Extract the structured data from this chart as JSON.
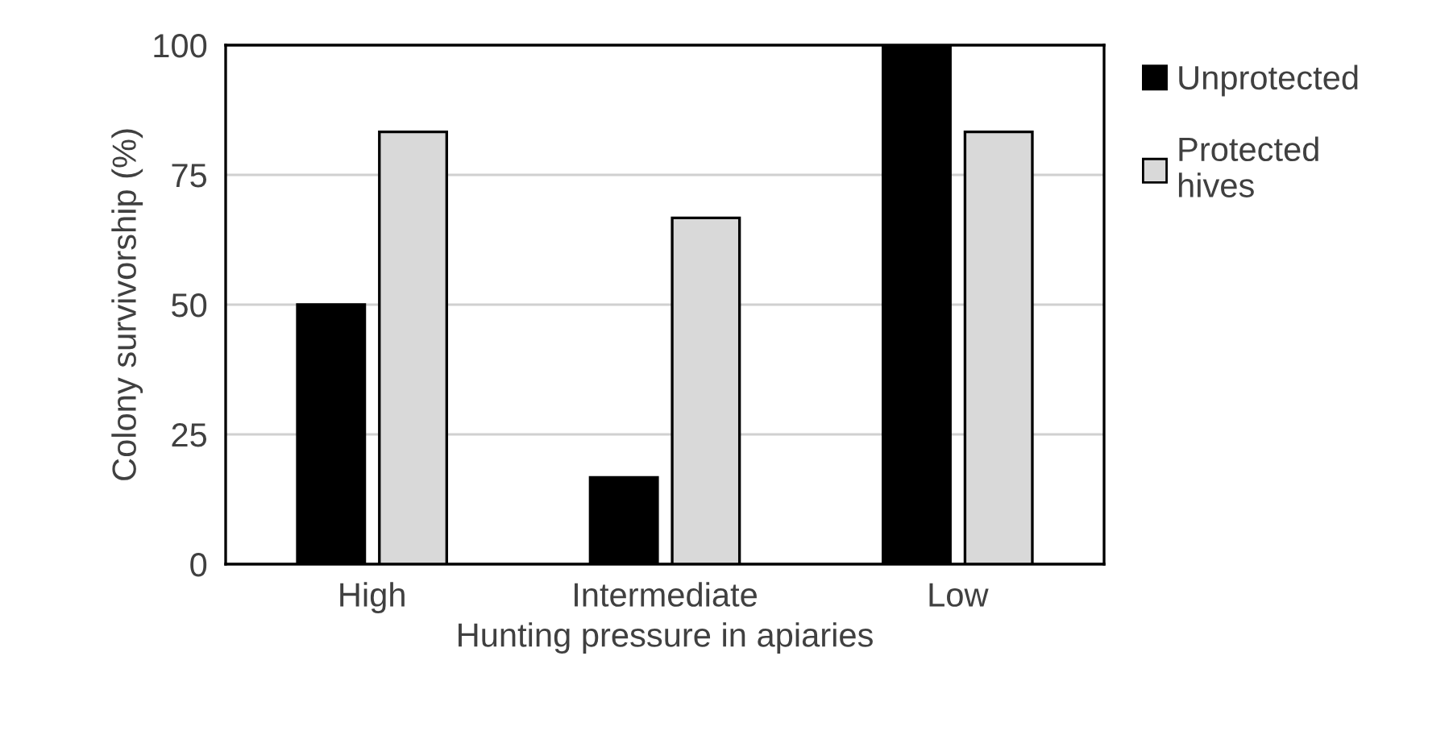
{
  "chart_data": {
    "type": "bar",
    "xlabel": "Hunting pressure in apiaries",
    "ylabel": "Colony survivorship (%)",
    "categories": [
      "High",
      "Intermediate",
      "Low"
    ],
    "series": [
      {
        "name": "Unprotected",
        "color": "#000000",
        "values": [
          50,
          16.7,
          100
        ]
      },
      {
        "name": "Protected\nhives",
        "color": "#d9d9d9",
        "values": [
          83.3,
          66.7,
          83.3
        ]
      }
    ],
    "ylim": [
      0,
      100
    ],
    "yticks": [
      0,
      25,
      50,
      75,
      100
    ],
    "grid": "y",
    "legend": "right"
  }
}
